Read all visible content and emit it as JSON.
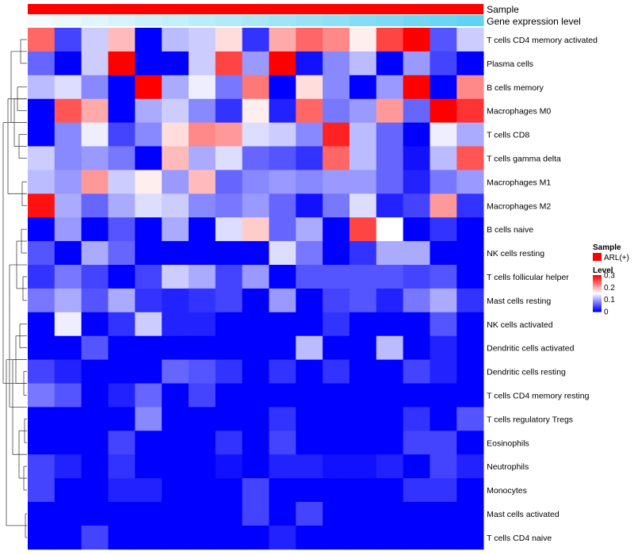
{
  "chart_data": {
    "type": "heatmap",
    "annotation_tracks": [
      {
        "label": "Sample",
        "color": "#ff0000"
      },
      {
        "label": "Gene expression level",
        "gradient_from": "#ffffff",
        "gradient_to": "#5fd3f3"
      }
    ],
    "rows": [
      "T cells CD4 memory activated",
      "Plasma cells",
      "B cells memory",
      "Macrophages M0",
      "T cells CD8",
      "T cells gamma delta",
      "Macrophages M1",
      "Macrophages M2",
      "B cells naive",
      "NK cells resting",
      "T cells follicular helper",
      "Mast cells resting",
      "NK cells activated",
      "Dendritic cells activated",
      "Dendritic cells resting",
      "T cells CD4 memory resting",
      "T cells regulatory  Tregs",
      "Eosinophils",
      "Neutrophils",
      "Monocytes",
      "Mast cells activated",
      "T cells CD4 naive"
    ],
    "values": [
      [
        0.24,
        0.04,
        0.12,
        0.19,
        0.0,
        0.11,
        0.12,
        0.17,
        0.03,
        0.2,
        0.24,
        0.22,
        0.16,
        0.26,
        0.31,
        0.05,
        0.12
      ],
      [
        0.06,
        0.0,
        0.12,
        0.31,
        0.0,
        0.0,
        0.12,
        0.26,
        0.09,
        0.3,
        0.01,
        0.08,
        0.11,
        0.0,
        0.09,
        0.04,
        0.0
      ],
      [
        0.11,
        0.13,
        0.08,
        0.0,
        0.3,
        0.1,
        0.14,
        0.07,
        0.23,
        0.0,
        0.17,
        0.08,
        0.0,
        0.09,
        0.31,
        0.0,
        0.22
      ],
      [
        0.0,
        0.25,
        0.2,
        0.0,
        0.1,
        0.12,
        0.08,
        0.03,
        0.16,
        0.02,
        0.24,
        0.07,
        0.09,
        0.21,
        0.06,
        0.31,
        0.27
      ],
      [
        0.0,
        0.08,
        0.14,
        0.04,
        0.08,
        0.17,
        0.22,
        0.21,
        0.13,
        0.12,
        0.08,
        0.28,
        0.11,
        0.06,
        0.0,
        0.14,
        0.1
      ],
      [
        0.12,
        0.08,
        0.09,
        0.07,
        0.0,
        0.19,
        0.1,
        0.13,
        0.06,
        0.05,
        0.03,
        0.24,
        0.11,
        0.06,
        0.01,
        0.11,
        0.25
      ],
      [
        0.11,
        0.09,
        0.21,
        0.12,
        0.16,
        0.09,
        0.19,
        0.06,
        0.08,
        0.09,
        0.08,
        0.09,
        0.09,
        0.06,
        0.02,
        0.07,
        0.09
      ],
      [
        0.29,
        0.1,
        0.06,
        0.1,
        0.13,
        0.12,
        0.08,
        0.07,
        0.09,
        0.06,
        0.01,
        0.07,
        0.13,
        0.02,
        0.04,
        0.21,
        0.03
      ],
      [
        0.0,
        0.09,
        0.0,
        0.05,
        0.0,
        0.1,
        0.0,
        0.13,
        0.18,
        0.06,
        0.1,
        0.0,
        0.26,
        0.15,
        0.0,
        0.03,
        0.0
      ],
      [
        0.05,
        0.0,
        0.1,
        0.06,
        0.0,
        0.0,
        0.0,
        0.0,
        0.0,
        0.13,
        0.07,
        0.0,
        0.03,
        0.1,
        0.1,
        0.0,
        0.0
      ],
      [
        0.03,
        0.07,
        0.04,
        0.0,
        0.04,
        0.12,
        0.1,
        0.04,
        0.09,
        0.0,
        0.05,
        0.05,
        0.05,
        0.05,
        0.04,
        0.05,
        0.0
      ],
      [
        0.07,
        0.1,
        0.05,
        0.1,
        0.03,
        0.02,
        0.03,
        0.04,
        0.0,
        0.09,
        0.0,
        0.04,
        0.05,
        0.02,
        0.07,
        0.1,
        0.03
      ],
      [
        0.0,
        0.14,
        0.0,
        0.03,
        0.12,
        0.02,
        0.02,
        0.0,
        0.0,
        0.0,
        0.0,
        0.03,
        0.0,
        0.0,
        0.0,
        0.05,
        0.0
      ],
      [
        0.0,
        0.0,
        0.05,
        0.0,
        0.0,
        0.0,
        0.0,
        0.0,
        0.0,
        0.0,
        0.11,
        0.0,
        0.0,
        0.11,
        0.0,
        0.02,
        0.0
      ],
      [
        0.04,
        0.02,
        0.0,
        0.0,
        0.0,
        0.06,
        0.05,
        0.03,
        0.0,
        0.03,
        0.0,
        0.03,
        0.0,
        0.0,
        0.04,
        0.02,
        0.0
      ],
      [
        0.07,
        0.05,
        0.0,
        0.02,
        0.06,
        0.0,
        0.04,
        0.0,
        0.0,
        0.0,
        0.0,
        0.0,
        0.0,
        0.0,
        0.0,
        0.0,
        0.0
      ],
      [
        0.0,
        0.0,
        0.0,
        0.0,
        0.08,
        0.0,
        0.0,
        0.0,
        0.0,
        0.03,
        0.0,
        0.0,
        0.0,
        0.0,
        0.03,
        0.0,
        0.05
      ],
      [
        0.0,
        0.0,
        0.0,
        0.04,
        0.0,
        0.0,
        0.0,
        0.03,
        0.0,
        0.04,
        0.0,
        0.0,
        0.0,
        0.0,
        0.04,
        0.04,
        0.0
      ],
      [
        0.04,
        0.02,
        0.0,
        0.03,
        0.0,
        0.0,
        0.0,
        0.01,
        0.0,
        0.02,
        0.02,
        0.01,
        0.01,
        0.02,
        0.0,
        0.04,
        0.02
      ],
      [
        0.04,
        0.0,
        0.0,
        0.02,
        0.02,
        0.0,
        0.0,
        0.0,
        0.04,
        0.0,
        0.0,
        0.0,
        0.0,
        0.0,
        0.03,
        0.03,
        0.0
      ],
      [
        0.0,
        0.0,
        0.0,
        0.0,
        0.0,
        0.0,
        0.0,
        0.0,
        0.04,
        0.0,
        0.04,
        0.0,
        0.0,
        0.0,
        0.0,
        0.0,
        0.0
      ],
      [
        0.0,
        0.0,
        0.04,
        0.0,
        0.0,
        0.0,
        0.0,
        0.0,
        0.0,
        0.02,
        0.0,
        0.0,
        0.0,
        0.0,
        0.0,
        0.0,
        0.0
      ]
    ],
    "color_scale": {
      "min": 0,
      "mid": 0.15,
      "max": 0.3,
      "low": "#0000ff",
      "mid_color": "#ffffff",
      "high": "#ff0000"
    },
    "legend": {
      "sample_title": "Sample",
      "sample_entry": "ARL(+)",
      "level_title": "Level",
      "level_ticks": [
        "0.3",
        "0.2",
        "0.1",
        "0"
      ],
      "level_tick_values": [
        0.3,
        0.2,
        0.1,
        0
      ],
      "position": "right"
    },
    "row_dendrogram": "left"
  }
}
